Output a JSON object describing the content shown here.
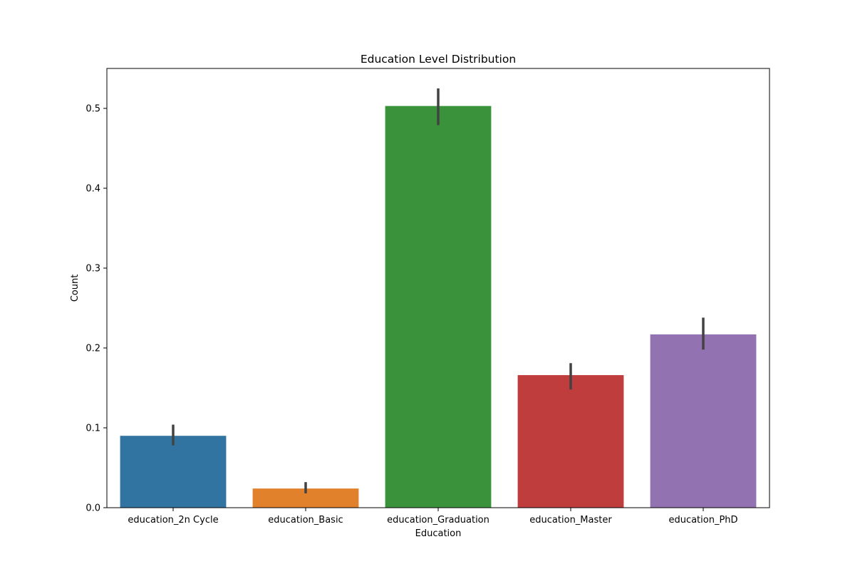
{
  "chart_data": {
    "type": "bar",
    "title": "Education Level Distribution",
    "xlabel": "Education",
    "ylabel": "Count",
    "ylim": [
      0,
      0.55
    ],
    "yticks": [
      0.0,
      0.1,
      0.2,
      0.3,
      0.4,
      0.5
    ],
    "ytick_labels": [
      "0.0",
      "0.1",
      "0.2",
      "0.3",
      "0.4",
      "0.5"
    ],
    "categories": [
      "education_2n Cycle",
      "education_Basic",
      "education_Graduation",
      "education_Master",
      "education_PhD"
    ],
    "values": [
      0.09,
      0.024,
      0.503,
      0.166,
      0.217
    ],
    "error_low": [
      0.078,
      0.018,
      0.479,
      0.148,
      0.198
    ],
    "error_high": [
      0.104,
      0.032,
      0.525,
      0.181,
      0.238
    ],
    "colors": [
      "#3274a1",
      "#e1812c",
      "#3a923a",
      "#c03d3e",
      "#9372b2"
    ],
    "error_color": "#424242",
    "grid": false,
    "legend": "none"
  }
}
